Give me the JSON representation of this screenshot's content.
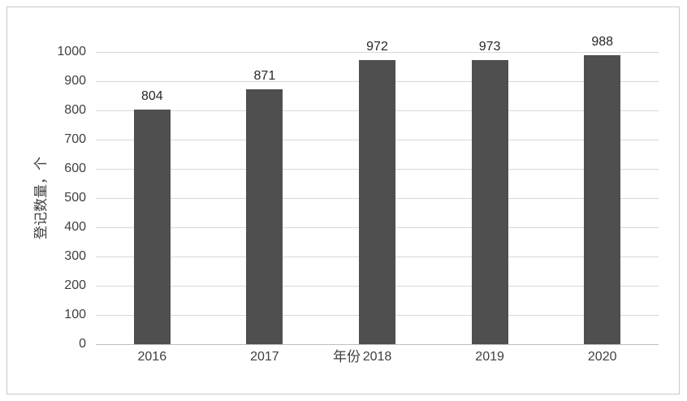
{
  "chart_data": {
    "type": "bar",
    "categories": [
      "2016",
      "2017",
      "2018",
      "2019",
      "2020"
    ],
    "values": [
      804,
      871,
      972,
      973,
      988
    ],
    "title": "",
    "xlabel": "年份",
    "ylabel": "登记数量，个",
    "ylim": [
      0,
      1000
    ],
    "ytick_step": 100,
    "yticks": [
      0,
      100,
      200,
      300,
      400,
      500,
      600,
      700,
      800,
      900,
      1000
    ],
    "grid": true,
    "legend_position": "none",
    "data_labels_shown": true,
    "colors": {
      "bar": "#4f4f4f",
      "gridline": "#d9d9d9",
      "axis_line": "#bfbfbf",
      "tick_text": "#404040",
      "data_label_text": "#262626",
      "frame_border": "#cbc9c9",
      "background": "#ffffff"
    }
  }
}
